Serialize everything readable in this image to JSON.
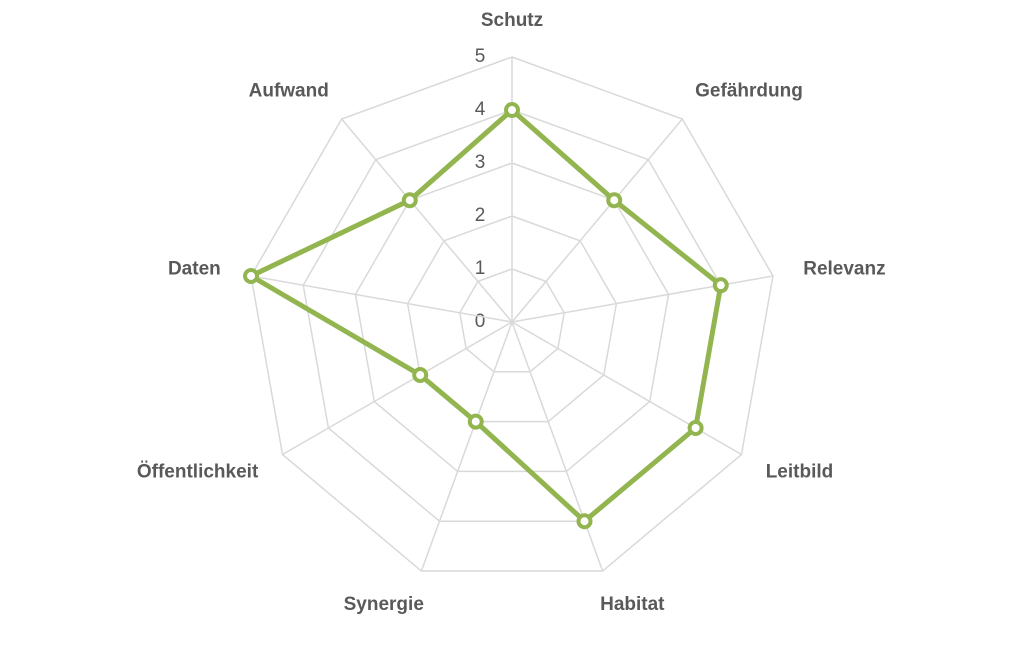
{
  "chart_data": {
    "type": "radar",
    "categories": [
      "Schutz",
      "Gefährdung",
      "Relevanz",
      "Leitbild",
      "Habitat",
      "Synergie",
      "Öffentlichkeit",
      "Daten",
      "Aufwand"
    ],
    "values": [
      4,
      3,
      4,
      4,
      4,
      2,
      2,
      5,
      3
    ],
    "color": "#92b54f",
    "ylim": [
      0,
      5
    ],
    "yticks": [
      0,
      1,
      2,
      3,
      4,
      5
    ],
    "grid": true
  }
}
